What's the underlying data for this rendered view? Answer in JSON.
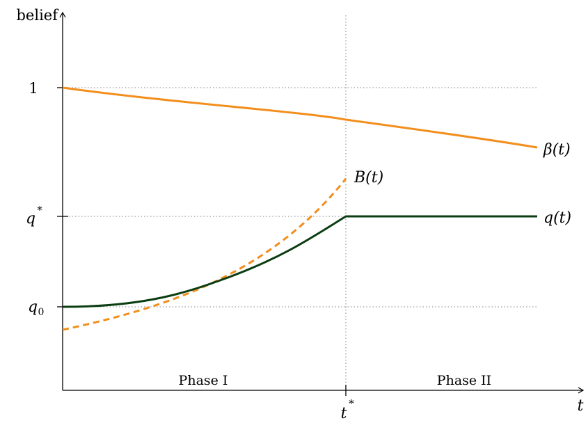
{
  "axes": {
    "y_label": "belief",
    "x_label": "t"
  },
  "y_ticks": {
    "one": "1",
    "q_star_base": "q",
    "q_star_sup": "*",
    "q0_base": "q",
    "q0_sub": "0"
  },
  "x_ticks": {
    "t_star_base": "t",
    "t_star_sup": "*"
  },
  "phases": {
    "phase1": "Phase I",
    "phase2": "Phase II"
  },
  "curves": {
    "beta": {
      "label": "β(t)",
      "color": "#F28E1C",
      "style": "solid"
    },
    "B": {
      "label": "B(t)",
      "color": "#F28E1C",
      "style": "dashed"
    },
    "q": {
      "label": "q(t)",
      "color": "#0B3D12",
      "style": "solid"
    }
  },
  "colors": {
    "axis": "#000000",
    "guide": "#808080"
  }
}
